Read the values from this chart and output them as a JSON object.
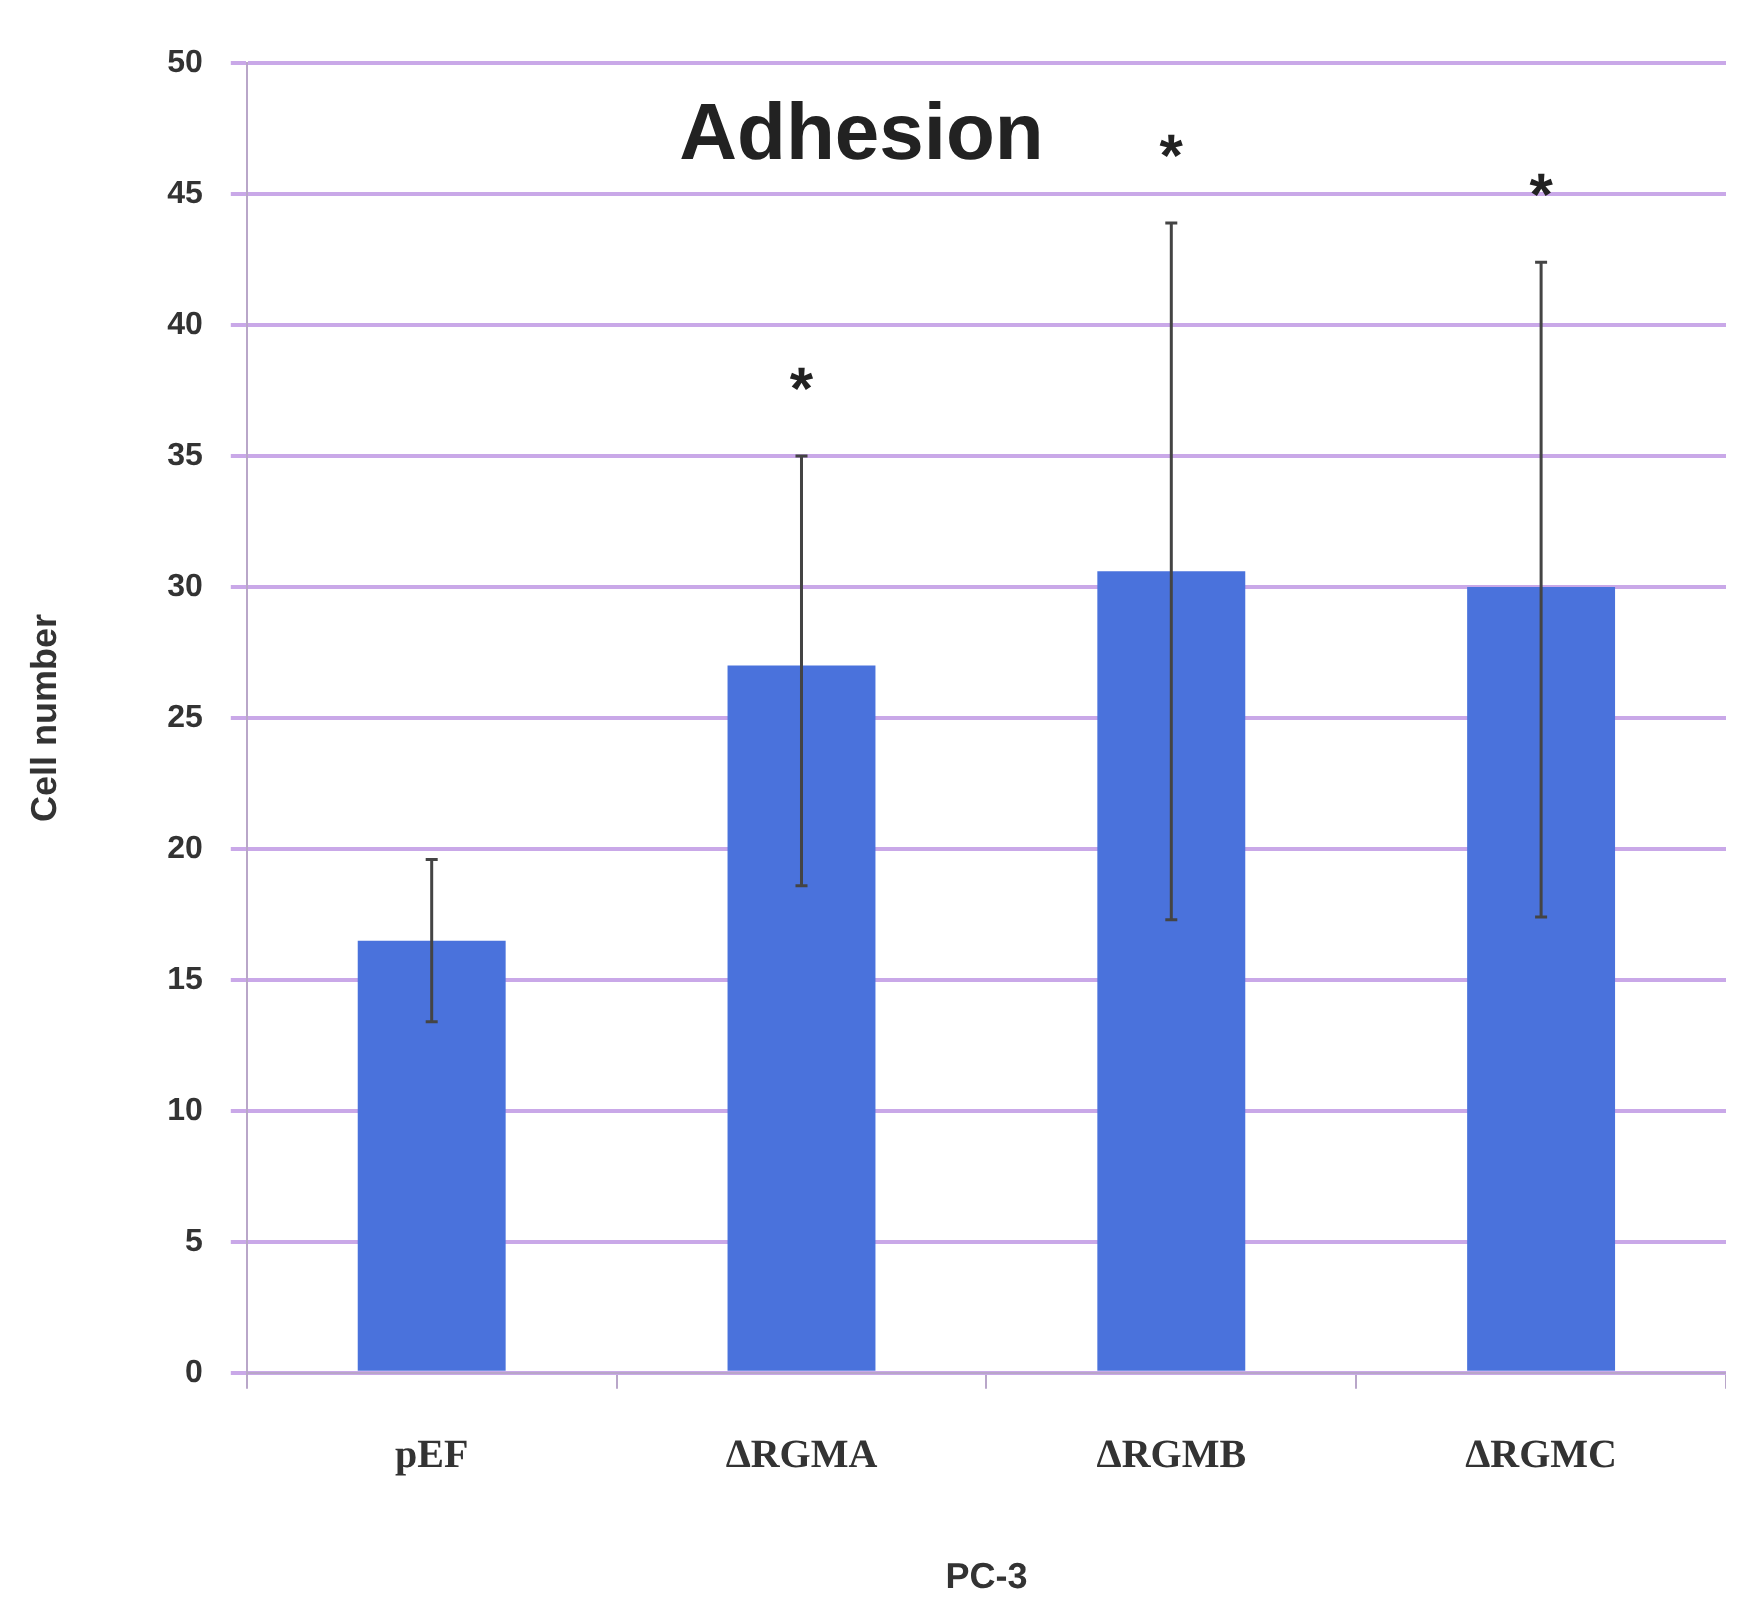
{
  "chart_data": {
    "type": "bar",
    "title": "Adhesion",
    "xlabel": "PC-3",
    "ylabel": "Cell number",
    "categories": [
      "pEF",
      "ΔRGMA",
      "ΔRGMB",
      "ΔRGMC"
    ],
    "values": [
      16.5,
      27.0,
      30.6,
      30.0
    ],
    "errors": [
      [
        13.4,
        19.6
      ],
      [
        18.6,
        35.0
      ],
      [
        17.3,
        43.9
      ],
      [
        17.4,
        42.4
      ]
    ],
    "color": "#4a72dc",
    "ylim": [
      0,
      50
    ],
    "yticks": [
      0,
      5,
      10,
      15,
      20,
      25,
      30,
      35,
      40,
      45,
      50
    ],
    "grid": "y",
    "legend": false,
    "annotations": [
      "*",
      "*",
      "*"
    ]
  }
}
